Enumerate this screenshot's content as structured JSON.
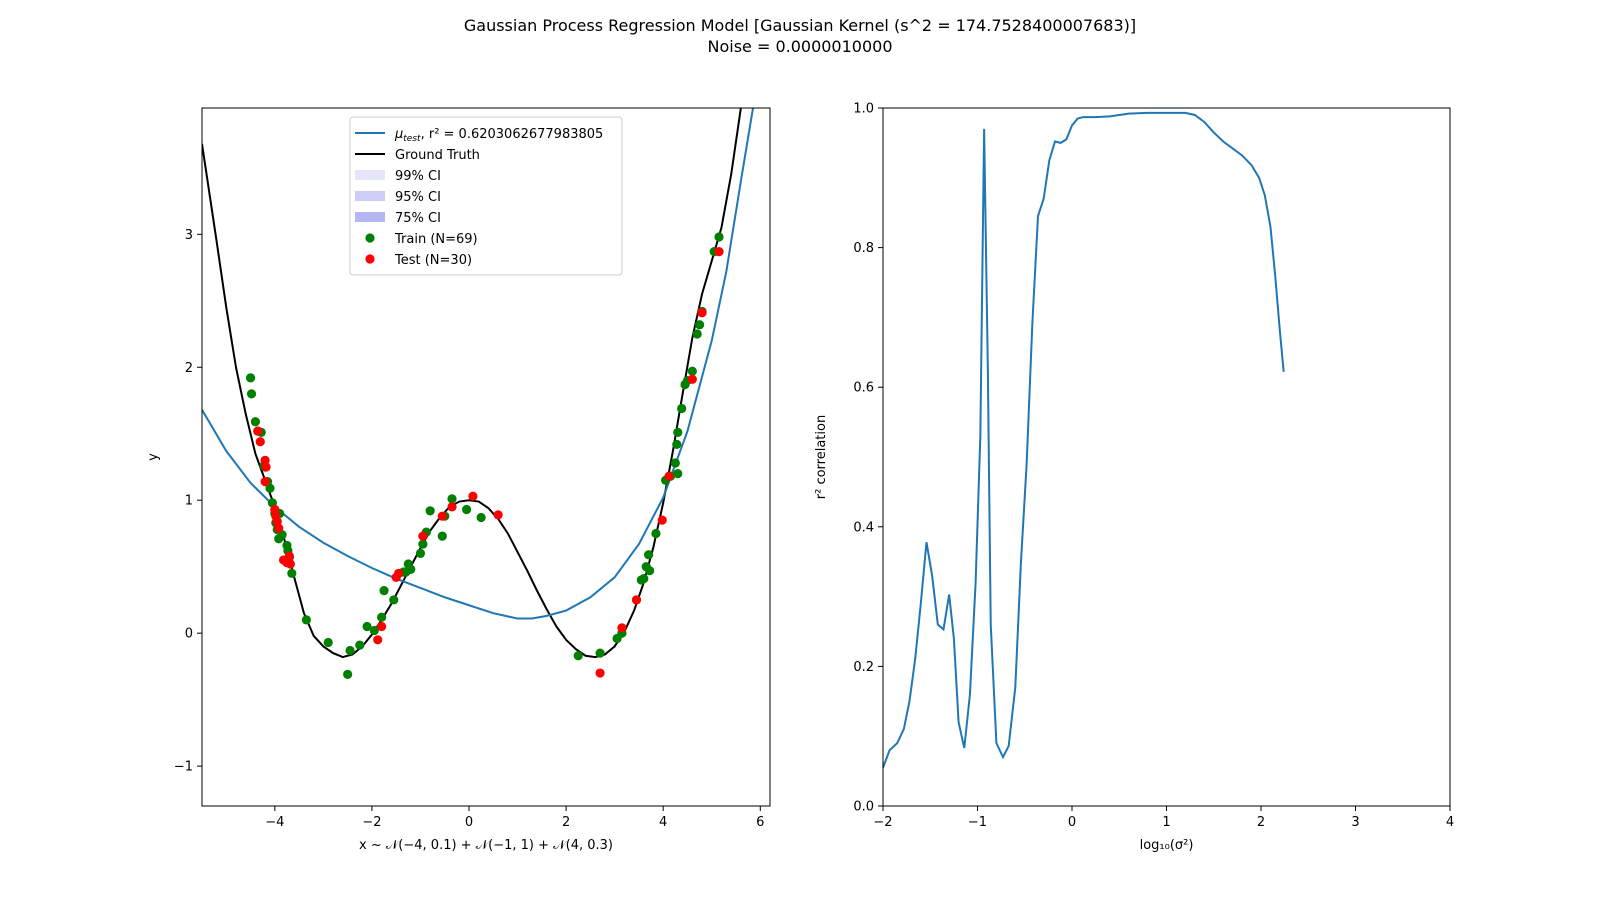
{
  "figure": {
    "title_line1": "Gaussian Process Regression Model [Gaussian Kernel (s^2 = 174.7528400007683)]",
    "title_line2": "Noise = 0.0000010000"
  },
  "chart_data": [
    {
      "type": "scatter",
      "xlabel": "x ~ 𝒩(−4, 0.1) + 𝒩(−1, 1) + 𝒩(4, 0.3)",
      "ylabel": "y",
      "xlim": [
        -5.5,
        6.2
      ],
      "ylim": [
        -1.3,
        3.95
      ],
      "xticks": [
        -4,
        -2,
        0,
        2,
        4,
        6
      ],
      "xtick_labels": [
        "−4",
        "−2",
        "0",
        "2",
        "4",
        "6"
      ],
      "yticks": [
        -1,
        0,
        1,
        2,
        3
      ],
      "ytick_labels": [
        "−1",
        "0",
        "1",
        "2",
        "3"
      ],
      "legend_position": "top-center",
      "legend": [
        {
          "label_main": "μ",
          "label_sub": "test",
          "label_rest": ", r² = 0.6203062677983805",
          "kind": "line",
          "color": "#1f77b4"
        },
        {
          "label": "Ground Truth",
          "kind": "line",
          "color": "#000000"
        },
        {
          "label": "99% CI",
          "kind": "patch",
          "color": "#e6e6fb"
        },
        {
          "label": "95% CI",
          "kind": "patch",
          "color": "#cdcdf7"
        },
        {
          "label": "75% CI",
          "kind": "patch",
          "color": "#b6b6f5"
        },
        {
          "label": "Train (N=69)",
          "kind": "marker",
          "color": "#008000"
        },
        {
          "label": "Test (N=30)",
          "kind": "marker",
          "color": "#ff0000"
        }
      ],
      "series": [
        {
          "name": "Ground Truth",
          "kind": "line",
          "color": "#000000",
          "points": [
            [
              -5.5,
              3.68
            ],
            [
              -5.2,
              2.95
            ],
            [
              -5.0,
              2.45
            ],
            [
              -4.8,
              2.0
            ],
            [
              -4.6,
              1.65
            ],
            [
              -4.4,
              1.35
            ],
            [
              -4.2,
              1.15
            ],
            [
              -4.0,
              0.95
            ],
            [
              -3.8,
              0.7
            ],
            [
              -3.6,
              0.42
            ],
            [
              -3.4,
              0.15
            ],
            [
              -3.2,
              -0.02
            ],
            [
              -3.0,
              -0.1
            ],
            [
              -2.8,
              -0.15
            ],
            [
              -2.6,
              -0.18
            ],
            [
              -2.4,
              -0.16
            ],
            [
              -2.2,
              -0.1
            ],
            [
              -2.0,
              -0.01
            ],
            [
              -1.8,
              0.1
            ],
            [
              -1.6,
              0.22
            ],
            [
              -1.4,
              0.36
            ],
            [
              -1.2,
              0.5
            ],
            [
              -1.0,
              0.64
            ],
            [
              -0.8,
              0.77
            ],
            [
              -0.6,
              0.87
            ],
            [
              -0.4,
              0.95
            ],
            [
              -0.2,
              0.99
            ],
            [
              0.0,
              1.0
            ],
            [
              0.2,
              0.99
            ],
            [
              0.4,
              0.94
            ],
            [
              0.6,
              0.86
            ],
            [
              0.8,
              0.75
            ],
            [
              1.0,
              0.61
            ],
            [
              1.2,
              0.47
            ],
            [
              1.4,
              0.32
            ],
            [
              1.6,
              0.18
            ],
            [
              1.8,
              0.05
            ],
            [
              2.0,
              -0.05
            ],
            [
              2.2,
              -0.12
            ],
            [
              2.4,
              -0.17
            ],
            [
              2.6,
              -0.18
            ],
            [
              2.8,
              -0.16
            ],
            [
              3.0,
              -0.1
            ],
            [
              3.2,
              0.01
            ],
            [
              3.4,
              0.17
            ],
            [
              3.6,
              0.38
            ],
            [
              3.8,
              0.65
            ],
            [
              4.0,
              0.98
            ],
            [
              4.2,
              1.37
            ],
            [
              4.4,
              1.8
            ],
            [
              4.6,
              2.22
            ],
            [
              4.8,
              2.55
            ],
            [
              5.0,
              2.8
            ],
            [
              5.2,
              3.05
            ],
            [
              5.4,
              3.45
            ],
            [
              5.6,
              3.95
            ]
          ]
        },
        {
          "name": "μtest",
          "kind": "line",
          "color": "#1f77b4",
          "points": [
            [
              -5.5,
              1.68
            ],
            [
              -5.0,
              1.37
            ],
            [
              -4.5,
              1.13
            ],
            [
              -4.0,
              0.95
            ],
            [
              -3.5,
              0.8
            ],
            [
              -3.0,
              0.68
            ],
            [
              -2.5,
              0.58
            ],
            [
              -2.0,
              0.49
            ],
            [
              -1.5,
              0.41
            ],
            [
              -1.0,
              0.34
            ],
            [
              -0.5,
              0.27
            ],
            [
              0.0,
              0.21
            ],
            [
              0.5,
              0.15
            ],
            [
              1.0,
              0.11
            ],
            [
              1.3,
              0.11
            ],
            [
              1.6,
              0.13
            ],
            [
              2.0,
              0.17
            ],
            [
              2.5,
              0.27
            ],
            [
              3.0,
              0.42
            ],
            [
              3.5,
              0.67
            ],
            [
              4.0,
              1.02
            ],
            [
              4.5,
              1.52
            ],
            [
              5.0,
              2.2
            ],
            [
              5.3,
              2.72
            ],
            [
              5.6,
              3.4
            ],
            [
              5.85,
              3.95
            ]
          ]
        },
        {
          "name": "Train (N=69)",
          "kind": "scatter",
          "color": "#008000",
          "points": [
            [
              -4.5,
              1.92
            ],
            [
              -4.48,
              1.8
            ],
            [
              -4.4,
              1.59
            ],
            [
              -4.35,
              1.52
            ],
            [
              -4.28,
              1.51
            ],
            [
              -4.22,
              1.26
            ],
            [
              -4.15,
              1.14
            ],
            [
              -4.1,
              1.09
            ],
            [
              -4.05,
              0.98
            ],
            [
              -4.0,
              0.9
            ],
            [
              -3.98,
              0.83
            ],
            [
              -3.95,
              0.78
            ],
            [
              -3.92,
              0.71
            ],
            [
              -3.85,
              0.74
            ],
            [
              -3.75,
              0.66
            ],
            [
              -3.73,
              0.62
            ],
            [
              -3.7,
              0.57
            ],
            [
              -3.65,
              0.45
            ],
            [
              -3.35,
              0.1
            ],
            [
              -2.9,
              -0.07
            ],
            [
              -2.5,
              -0.31
            ],
            [
              -2.45,
              -0.13
            ],
            [
              -2.25,
              -0.09
            ],
            [
              -2.1,
              0.05
            ],
            [
              -1.95,
              0.02
            ],
            [
              -1.8,
              0.12
            ],
            [
              -1.75,
              0.32
            ],
            [
              -1.55,
              0.25
            ],
            [
              -1.3,
              0.46
            ],
            [
              -1.25,
              0.52
            ],
            [
              -1.2,
              0.48
            ],
            [
              -1.0,
              0.6
            ],
            [
              -0.95,
              0.67
            ],
            [
              -0.88,
              0.76
            ],
            [
              -0.8,
              0.92
            ],
            [
              -0.55,
              0.73
            ],
            [
              -0.35,
              1.01
            ],
            [
              -0.05,
              0.93
            ],
            [
              0.25,
              0.87
            ],
            [
              2.25,
              -0.17
            ],
            [
              2.7,
              -0.15
            ],
            [
              3.05,
              -0.04
            ],
            [
              3.15,
              0.0
            ],
            [
              3.55,
              0.4
            ],
            [
              3.6,
              0.41
            ],
            [
              3.65,
              0.5
            ],
            [
              3.7,
              0.59
            ],
            [
              3.72,
              0.47
            ],
            [
              3.85,
              0.75
            ],
            [
              4.05,
              1.15
            ],
            [
              4.15,
              1.18
            ],
            [
              4.25,
              1.28
            ],
            [
              4.28,
              1.42
            ],
            [
              4.3,
              1.51
            ],
            [
              4.38,
              1.69
            ],
            [
              4.45,
              1.87
            ],
            [
              4.5,
              1.9
            ],
            [
              4.6,
              1.97
            ],
            [
              4.7,
              2.25
            ],
            [
              4.75,
              2.32
            ],
            [
              4.8,
              2.42
            ],
            [
              5.05,
              2.87
            ],
            [
              5.15,
              2.98
            ],
            [
              -4.2,
              1.25
            ],
            [
              -3.9,
              0.9
            ],
            [
              -1.35,
              0.46
            ],
            [
              -0.5,
              0.88
            ],
            [
              4.3,
              1.2
            ],
            [
              3.45,
              0.25
            ]
          ]
        },
        {
          "name": "Test (N=30)",
          "kind": "scatter",
          "color": "#ff0000",
          "points": [
            [
              -4.35,
              1.52
            ],
            [
              -4.3,
              1.44
            ],
            [
              -4.2,
              1.3
            ],
            [
              -4.18,
              1.25
            ],
            [
              -4.2,
              1.14
            ],
            [
              -4.0,
              0.93
            ],
            [
              -3.98,
              0.88
            ],
            [
              -3.95,
              0.84
            ],
            [
              -3.92,
              0.79
            ],
            [
              -3.82,
              0.55
            ],
            [
              -3.75,
              0.53
            ],
            [
              -3.7,
              0.58
            ],
            [
              -3.68,
              0.52
            ],
            [
              -1.88,
              -0.05
            ],
            [
              -1.8,
              0.05
            ],
            [
              -1.5,
              0.42
            ],
            [
              -1.45,
              0.45
            ],
            [
              -0.95,
              0.73
            ],
            [
              -0.55,
              0.88
            ],
            [
              -0.35,
              0.95
            ],
            [
              0.08,
              1.03
            ],
            [
              0.6,
              0.89
            ],
            [
              2.7,
              -0.3
            ],
            [
              3.15,
              0.04
            ],
            [
              3.45,
              0.25
            ],
            [
              3.98,
              0.85
            ],
            [
              4.12,
              1.18
            ],
            [
              4.6,
              1.91
            ],
            [
              4.8,
              2.41
            ],
            [
              5.15,
              2.87
            ]
          ]
        }
      ]
    },
    {
      "type": "line",
      "xlabel": "log₁₀(σ²)",
      "ylabel": "r² correlation",
      "xlim": [
        -2,
        4
      ],
      "ylim": [
        0,
        1
      ],
      "xticks": [
        -2,
        -1,
        0,
        1,
        2,
        3,
        4
      ],
      "xtick_labels": [
        "−2",
        "−1",
        "0",
        "1",
        "2",
        "3",
        "4"
      ],
      "yticks": [
        0.0,
        0.2,
        0.4,
        0.6,
        0.8,
        1.0
      ],
      "ytick_labels": [
        "0.0",
        "0.2",
        "0.4",
        "0.6",
        "0.8",
        "1.0"
      ],
      "series": [
        {
          "kind": "line",
          "color": "#1f77b4",
          "points": [
            [
              -2.0,
              0.055
            ],
            [
              -1.93,
              0.08
            ],
            [
              -1.85,
              0.09
            ],
            [
              -1.78,
              0.11
            ],
            [
              -1.72,
              0.15
            ],
            [
              -1.66,
              0.21
            ],
            [
              -1.6,
              0.29
            ],
            [
              -1.54,
              0.378
            ],
            [
              -1.48,
              0.33
            ],
            [
              -1.42,
              0.26
            ],
            [
              -1.36,
              0.253
            ],
            [
              -1.3,
              0.303
            ],
            [
              -1.25,
              0.24
            ],
            [
              -1.2,
              0.12
            ],
            [
              -1.14,
              0.083
            ],
            [
              -1.08,
              0.16
            ],
            [
              -1.02,
              0.32
            ],
            [
              -0.97,
              0.53
            ],
            [
              -0.93,
              0.97
            ],
            [
              -0.89,
              0.62
            ],
            [
              -0.86,
              0.26
            ],
            [
              -0.8,
              0.09
            ],
            [
              -0.73,
              0.07
            ],
            [
              -0.67,
              0.086
            ],
            [
              -0.6,
              0.17
            ],
            [
              -0.54,
              0.35
            ],
            [
              -0.48,
              0.49
            ],
            [
              -0.42,
              0.69
            ],
            [
              -0.36,
              0.845
            ],
            [
              -0.3,
              0.87
            ],
            [
              -0.24,
              0.925
            ],
            [
              -0.18,
              0.952
            ],
            [
              -0.12,
              0.95
            ],
            [
              -0.06,
              0.955
            ],
            [
              0.0,
              0.975
            ],
            [
              0.06,
              0.985
            ],
            [
              0.12,
              0.987
            ],
            [
              0.25,
              0.987
            ],
            [
              0.4,
              0.988
            ],
            [
              0.6,
              0.992
            ],
            [
              0.8,
              0.993
            ],
            [
              1.0,
              0.993
            ],
            [
              1.2,
              0.993
            ],
            [
              1.3,
              0.99
            ],
            [
              1.4,
              0.98
            ],
            [
              1.5,
              0.965
            ],
            [
              1.6,
              0.952
            ],
            [
              1.7,
              0.942
            ],
            [
              1.8,
              0.932
            ],
            [
              1.9,
              0.918
            ],
            [
              1.98,
              0.9
            ],
            [
              2.04,
              0.875
            ],
            [
              2.1,
              0.83
            ],
            [
              2.15,
              0.76
            ],
            [
              2.2,
              0.68
            ],
            [
              2.24,
              0.622
            ]
          ]
        }
      ]
    }
  ]
}
